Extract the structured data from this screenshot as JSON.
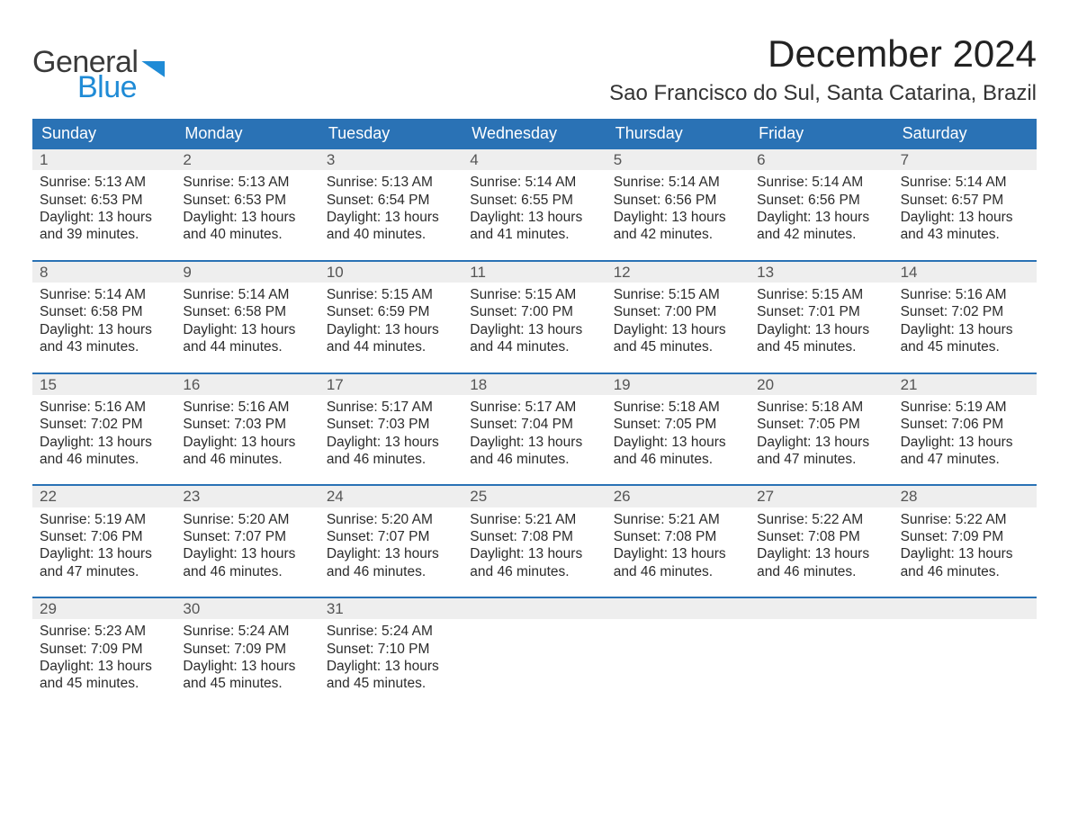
{
  "brand": {
    "line1": "General",
    "line2": "Blue"
  },
  "title": {
    "month": "December 2024",
    "location": "Sao Francisco do Sul, Santa Catarina, Brazil"
  },
  "colors": {
    "brand_blue": "#1f8bd6",
    "header_blue": "#2a72b5",
    "row_border": "#2a72b5",
    "muted_bg": "#eeeeee",
    "text": "#2b2b2b",
    "page_bg": "#ffffff"
  },
  "fonts": {
    "family": "Segoe UI",
    "title_month_pt": 42,
    "title_location_pt": 24,
    "dayhead_pt": 18,
    "body_pt": 15.5
  },
  "layout": {
    "columns": 7,
    "rows": 5
  },
  "weekday_headers": [
    "Sunday",
    "Monday",
    "Tuesday",
    "Wednesday",
    "Thursday",
    "Friday",
    "Saturday"
  ],
  "labels": {
    "sunrise": "Sunrise:",
    "sunset": "Sunset:",
    "daylight": "Daylight:"
  },
  "weeks": [
    [
      {
        "n": 1,
        "sunrise": "5:13 AM",
        "sunset": "6:53 PM",
        "day_l1": "13 hours",
        "day_l2": "and 39 minutes."
      },
      {
        "n": 2,
        "sunrise": "5:13 AM",
        "sunset": "6:53 PM",
        "day_l1": "13 hours",
        "day_l2": "and 40 minutes."
      },
      {
        "n": 3,
        "sunrise": "5:13 AM",
        "sunset": "6:54 PM",
        "day_l1": "13 hours",
        "day_l2": "and 40 minutes."
      },
      {
        "n": 4,
        "sunrise": "5:14 AM",
        "sunset": "6:55 PM",
        "day_l1": "13 hours",
        "day_l2": "and 41 minutes."
      },
      {
        "n": 5,
        "sunrise": "5:14 AM",
        "sunset": "6:56 PM",
        "day_l1": "13 hours",
        "day_l2": "and 42 minutes."
      },
      {
        "n": 6,
        "sunrise": "5:14 AM",
        "sunset": "6:56 PM",
        "day_l1": "13 hours",
        "day_l2": "and 42 minutes."
      },
      {
        "n": 7,
        "sunrise": "5:14 AM",
        "sunset": "6:57 PM",
        "day_l1": "13 hours",
        "day_l2": "and 43 minutes."
      }
    ],
    [
      {
        "n": 8,
        "sunrise": "5:14 AM",
        "sunset": "6:58 PM",
        "day_l1": "13 hours",
        "day_l2": "and 43 minutes."
      },
      {
        "n": 9,
        "sunrise": "5:14 AM",
        "sunset": "6:58 PM",
        "day_l1": "13 hours",
        "day_l2": "and 44 minutes."
      },
      {
        "n": 10,
        "sunrise": "5:15 AM",
        "sunset": "6:59 PM",
        "day_l1": "13 hours",
        "day_l2": "and 44 minutes."
      },
      {
        "n": 11,
        "sunrise": "5:15 AM",
        "sunset": "7:00 PM",
        "day_l1": "13 hours",
        "day_l2": "and 44 minutes."
      },
      {
        "n": 12,
        "sunrise": "5:15 AM",
        "sunset": "7:00 PM",
        "day_l1": "13 hours",
        "day_l2": "and 45 minutes."
      },
      {
        "n": 13,
        "sunrise": "5:15 AM",
        "sunset": "7:01 PM",
        "day_l1": "13 hours",
        "day_l2": "and 45 minutes."
      },
      {
        "n": 14,
        "sunrise": "5:16 AM",
        "sunset": "7:02 PM",
        "day_l1": "13 hours",
        "day_l2": "and 45 minutes."
      }
    ],
    [
      {
        "n": 15,
        "sunrise": "5:16 AM",
        "sunset": "7:02 PM",
        "day_l1": "13 hours",
        "day_l2": "and 46 minutes."
      },
      {
        "n": 16,
        "sunrise": "5:16 AM",
        "sunset": "7:03 PM",
        "day_l1": "13 hours",
        "day_l2": "and 46 minutes."
      },
      {
        "n": 17,
        "sunrise": "5:17 AM",
        "sunset": "7:03 PM",
        "day_l1": "13 hours",
        "day_l2": "and 46 minutes."
      },
      {
        "n": 18,
        "sunrise": "5:17 AM",
        "sunset": "7:04 PM",
        "day_l1": "13 hours",
        "day_l2": "and 46 minutes."
      },
      {
        "n": 19,
        "sunrise": "5:18 AM",
        "sunset": "7:05 PM",
        "day_l1": "13 hours",
        "day_l2": "and 46 minutes."
      },
      {
        "n": 20,
        "sunrise": "5:18 AM",
        "sunset": "7:05 PM",
        "day_l1": "13 hours",
        "day_l2": "and 47 minutes."
      },
      {
        "n": 21,
        "sunrise": "5:19 AM",
        "sunset": "7:06 PM",
        "day_l1": "13 hours",
        "day_l2": "and 47 minutes."
      }
    ],
    [
      {
        "n": 22,
        "sunrise": "5:19 AM",
        "sunset": "7:06 PM",
        "day_l1": "13 hours",
        "day_l2": "and 47 minutes."
      },
      {
        "n": 23,
        "sunrise": "5:20 AM",
        "sunset": "7:07 PM",
        "day_l1": "13 hours",
        "day_l2": "and 46 minutes."
      },
      {
        "n": 24,
        "sunrise": "5:20 AM",
        "sunset": "7:07 PM",
        "day_l1": "13 hours",
        "day_l2": "and 46 minutes."
      },
      {
        "n": 25,
        "sunrise": "5:21 AM",
        "sunset": "7:08 PM",
        "day_l1": "13 hours",
        "day_l2": "and 46 minutes."
      },
      {
        "n": 26,
        "sunrise": "5:21 AM",
        "sunset": "7:08 PM",
        "day_l1": "13 hours",
        "day_l2": "and 46 minutes."
      },
      {
        "n": 27,
        "sunrise": "5:22 AM",
        "sunset": "7:08 PM",
        "day_l1": "13 hours",
        "day_l2": "and 46 minutes."
      },
      {
        "n": 28,
        "sunrise": "5:22 AM",
        "sunset": "7:09 PM",
        "day_l1": "13 hours",
        "day_l2": "and 46 minutes."
      }
    ],
    [
      {
        "n": 29,
        "sunrise": "5:23 AM",
        "sunset": "7:09 PM",
        "day_l1": "13 hours",
        "day_l2": "and 45 minutes."
      },
      {
        "n": 30,
        "sunrise": "5:24 AM",
        "sunset": "7:09 PM",
        "day_l1": "13 hours",
        "day_l2": "and 45 minutes."
      },
      {
        "n": 31,
        "sunrise": "5:24 AM",
        "sunset": "7:10 PM",
        "day_l1": "13 hours",
        "day_l2": "and 45 minutes."
      },
      null,
      null,
      null,
      null
    ]
  ]
}
